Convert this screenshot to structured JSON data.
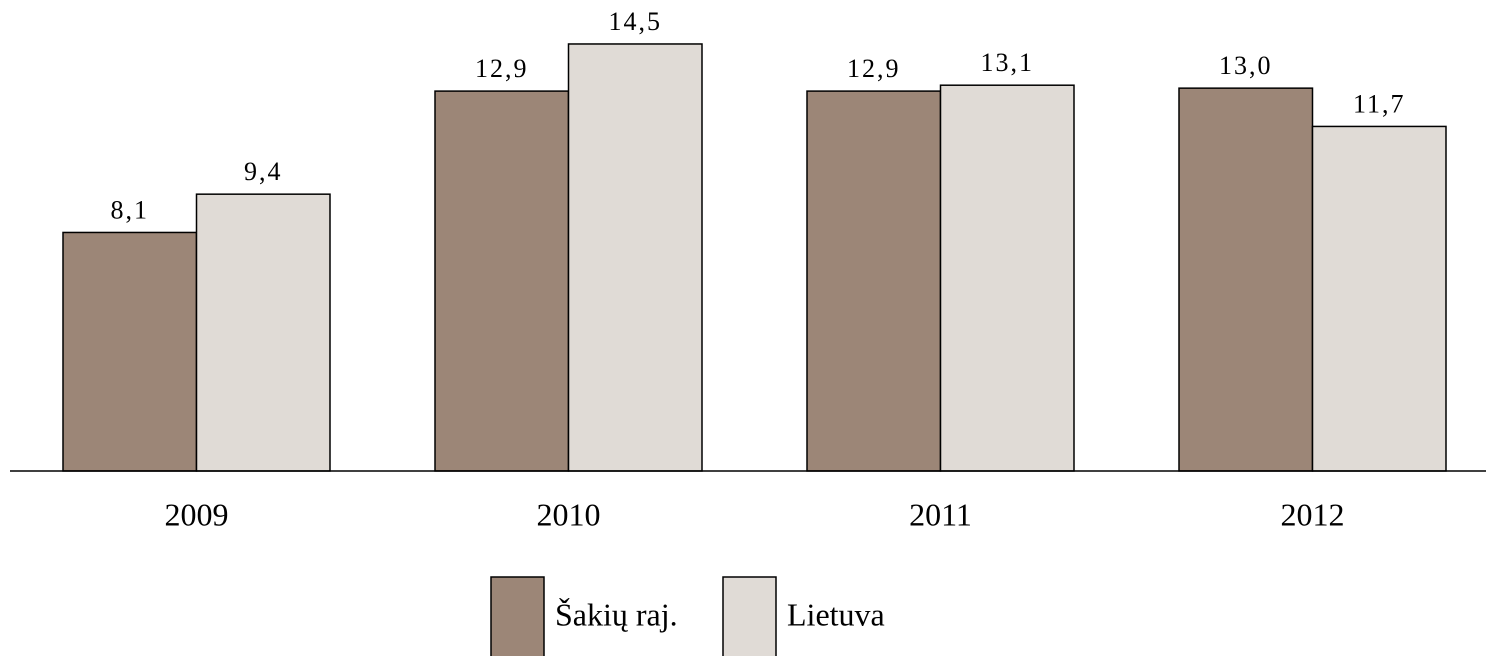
{
  "chart_data": {
    "type": "bar",
    "categories": [
      "2009",
      "2010",
      "2011",
      "2012"
    ],
    "series": [
      {
        "name": "Šakių raj.",
        "color": "#9c8677",
        "values": [
          8.1,
          12.9,
          12.9,
          13.0
        ],
        "value_labels": [
          "8,1",
          "12,9",
          "12,9",
          "13,0"
        ]
      },
      {
        "name": "Lietuva",
        "color": "#e0dbd6",
        "values": [
          9.4,
          14.5,
          13.1,
          11.7
        ],
        "value_labels": [
          "9,4",
          "14,5",
          "13,1",
          "11,7"
        ]
      }
    ]
  }
}
